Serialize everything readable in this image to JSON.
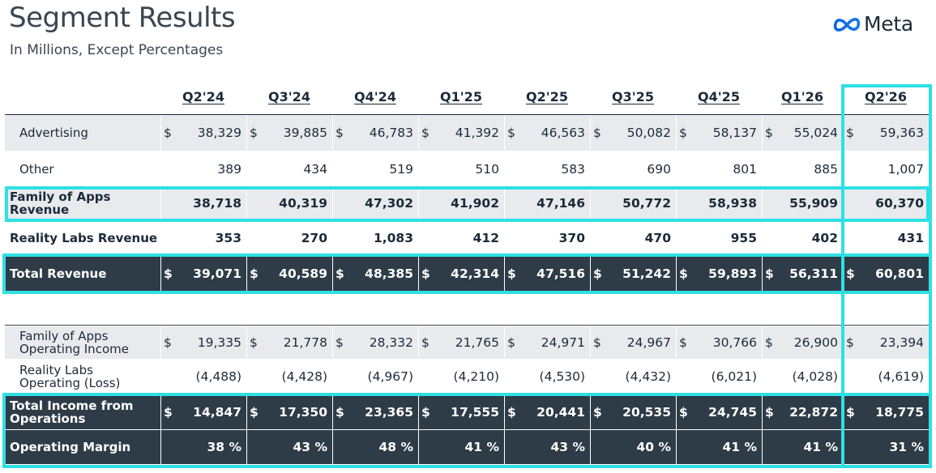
{
  "header": {
    "title": "Segment Results",
    "subtitle": "In Millions, Except Percentages",
    "logo_text": "Meta"
  },
  "columns": [
    "Q2'24",
    "Q3'24",
    "Q4'24",
    "Q1'25",
    "Q2'25",
    "Q3'25",
    "Q4'25",
    "Q1'26",
    "Q2'26"
  ],
  "rows": [
    {
      "label": "Advertising",
      "currency": true,
      "values": [
        "38,329",
        "39,885",
        "46,783",
        "41,392",
        "46,563",
        "50,082",
        "58,137",
        "55,024",
        "59,363"
      ]
    },
    {
      "label": "Other",
      "currency": false,
      "values": [
        "389",
        "434",
        "519",
        "510",
        "583",
        "690",
        "801",
        "885",
        "1,007"
      ]
    },
    {
      "label": "Family of Apps Revenue",
      "currency": false,
      "values": [
        "38,718",
        "40,319",
        "47,302",
        "41,902",
        "47,146",
        "50,772",
        "58,938",
        "55,909",
        "60,370"
      ]
    },
    {
      "label": "Reality Labs Revenue",
      "currency": false,
      "values": [
        "353",
        "270",
        "1,083",
        "412",
        "370",
        "470",
        "955",
        "402",
        "431"
      ]
    },
    {
      "label": "Total Revenue",
      "currency": true,
      "values": [
        "39,071",
        "40,589",
        "48,385",
        "42,314",
        "47,516",
        "51,242",
        "59,893",
        "56,311",
        "60,801"
      ]
    },
    {
      "label": "Family of Apps Operating Income",
      "currency": true,
      "values": [
        "19,335",
        "21,778",
        "28,332",
        "21,765",
        "24,971",
        "24,967",
        "30,766",
        "26,900",
        "23,394"
      ]
    },
    {
      "label": "Reality Labs Operating (Loss)",
      "currency": false,
      "values": [
        "(4,488)",
        "(4,428)",
        "(4,967)",
        "(4,210)",
        "(4,530)",
        "(4,432)",
        "(6,021)",
        "(4,028)",
        "(4,619)"
      ]
    },
    {
      "label": "Total Income from Operations",
      "currency": true,
      "values": [
        "14,847",
        "17,350",
        "23,365",
        "17,555",
        "20,441",
        "20,535",
        "24,745",
        "22,872",
        "18,775"
      ]
    },
    {
      "label": "Operating Margin",
      "currency": false,
      "values": [
        "38 %",
        "43 %",
        "48 %",
        "41 %",
        "43 %",
        "40 %",
        "41 %",
        "41 %",
        "31 %"
      ]
    }
  ],
  "currency_symbol": "$",
  "colors": {
    "dark_row": "#2e3c48",
    "light_row": "#e8eaed",
    "highlight": "#2ee0e4",
    "text": "#1c2b39"
  }
}
